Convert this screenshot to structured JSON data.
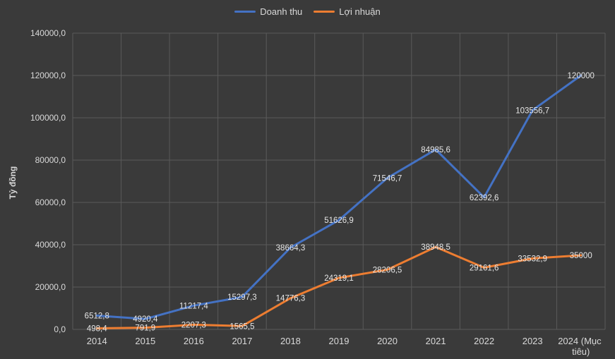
{
  "chart_data": {
    "type": "line",
    "categories": [
      "2014",
      "2015",
      "2016",
      "2017",
      "2018",
      "2019",
      "2020",
      "2021",
      "2022",
      "2023",
      "2024 (Mục tiêu)"
    ],
    "series": [
      {
        "name": "Doanh thu",
        "color": "#4472c4",
        "values": [
          6512.8,
          4920.4,
          11217.4,
          15297.3,
          38664.3,
          51626.9,
          71546.7,
          84985.6,
          62392.6,
          103556.7,
          120000
        ],
        "labels": [
          "6512,8",
          "4920,4",
          "11217,4",
          "15297,3",
          "38664,3",
          "51626,9",
          "71546,7",
          "84985,6",
          "62392,6",
          "103556,7",
          "120000"
        ]
      },
      {
        "name": "Lợi nhuận",
        "color": "#ed7d31",
        "values": [
          498.4,
          791.9,
          2207.3,
          1565.5,
          14776.3,
          24319.1,
          28206.5,
          38948.5,
          29161.6,
          33532.9,
          35000
        ],
        "labels": [
          "498,4",
          "791,9",
          "2207,3",
          "1565,5",
          "14776,3",
          "24319,1",
          "28206,5",
          "38948,5",
          "29161,6",
          "33532,9",
          "35000"
        ]
      }
    ],
    "yticks": [
      "0,0",
      "20000,0",
      "40000,0",
      "60000,0",
      "80000,0",
      "100000,0",
      "120000,0",
      "140000,0"
    ],
    "ylim": [
      0,
      140000
    ],
    "ylabel": "Tỷ đồng",
    "xlabel": "",
    "grid": true,
    "legend_position": "top"
  }
}
